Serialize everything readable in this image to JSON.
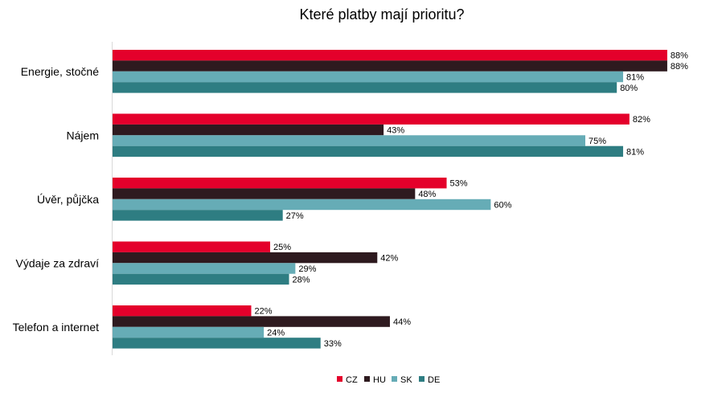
{
  "chart_data": {
    "type": "bar",
    "orientation": "horizontal",
    "title": "Které platby mají prioritu?",
    "categories": [
      "Energie, stočné",
      "Nájem",
      "Úvěr, půjčka",
      "Výdaje za zdraví",
      "Telefon a internet"
    ],
    "series": [
      {
        "name": "CZ",
        "color": "#e4002b",
        "values": [
          88,
          82,
          53,
          25,
          22
        ]
      },
      {
        "name": "HU",
        "color": "#2e1a1f",
        "values": [
          88,
          43,
          48,
          42,
          44
        ]
      },
      {
        "name": "SK",
        "color": "#66acb6",
        "values": [
          81,
          75,
          60,
          29,
          24
        ]
      },
      {
        "name": "DE",
        "color": "#2e7d82",
        "values": [
          80,
          81,
          27,
          28,
          33
        ]
      }
    ],
    "value_suffix": "%",
    "xlim": [
      0,
      100
    ],
    "grid": false,
    "legend_position": "bottom"
  }
}
